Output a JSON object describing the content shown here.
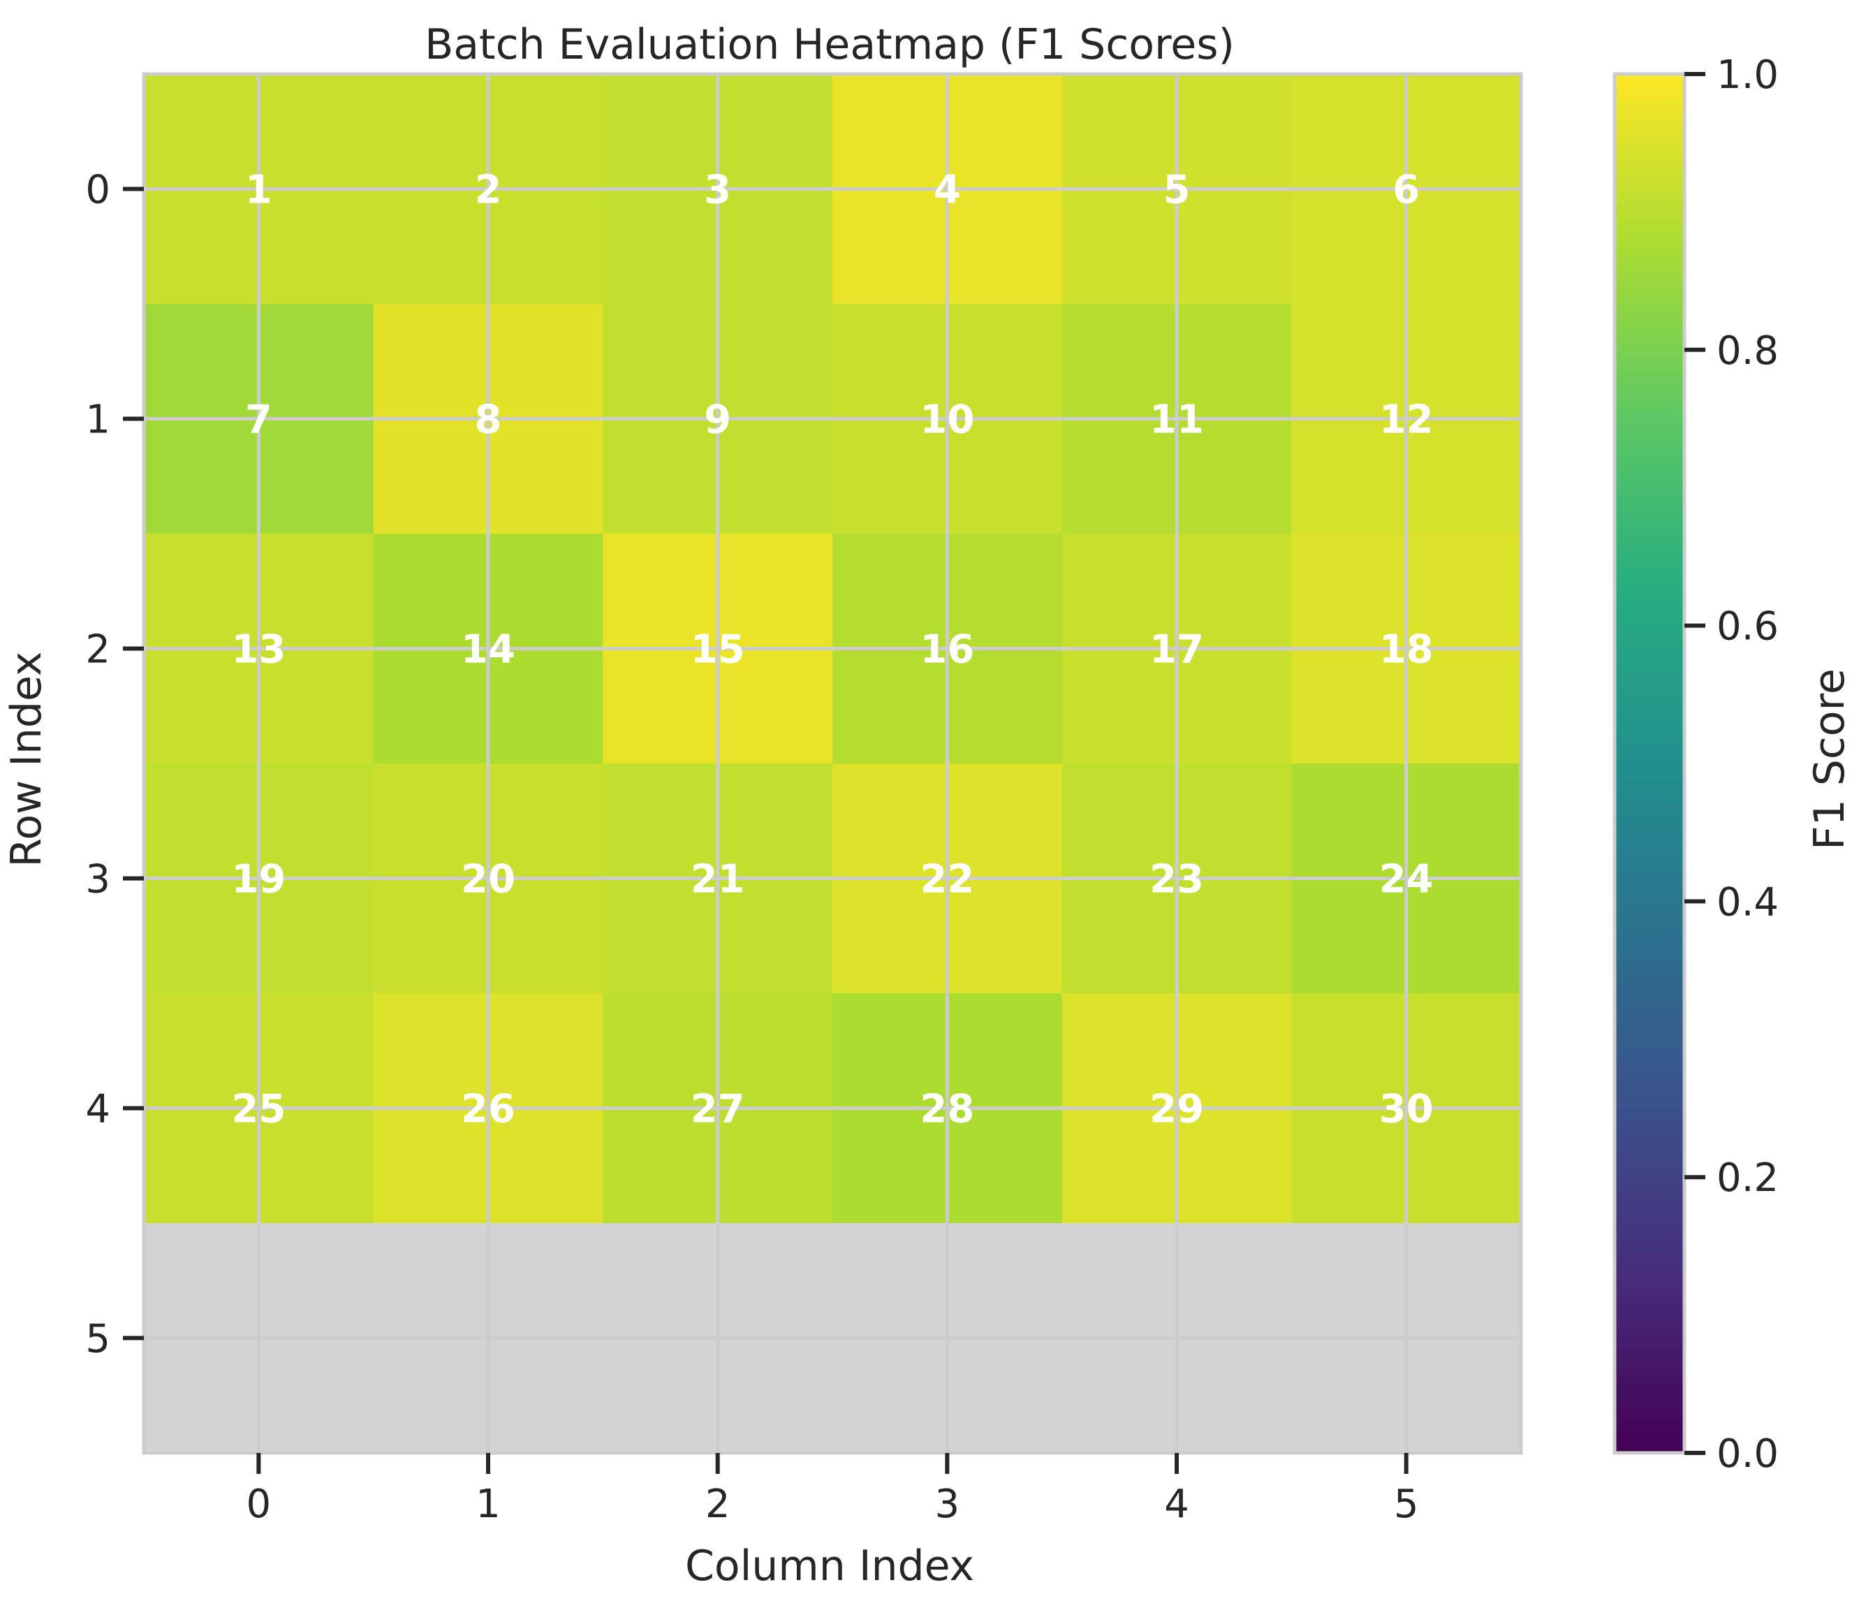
{
  "chart_data": {
    "type": "heatmap",
    "title": "Batch Evaluation Heatmap (F1 Scores)",
    "xlabel": "Column Index",
    "ylabel": "Row Index",
    "x_categories": [
      "0",
      "1",
      "2",
      "3",
      "4",
      "5"
    ],
    "y_categories": [
      "0",
      "1",
      "2",
      "3",
      "4",
      "5"
    ],
    "colormap": "viridis",
    "missing_color": "#d3d3d3",
    "grid": true,
    "values": [
      [
        0.92,
        0.92,
        0.91,
        0.97,
        0.93,
        0.94
      ],
      [
        0.86,
        0.96,
        0.91,
        0.92,
        0.89,
        0.94
      ],
      [
        0.92,
        0.88,
        0.97,
        0.89,
        0.92,
        0.95
      ],
      [
        0.91,
        0.92,
        0.91,
        0.95,
        0.91,
        0.88
      ],
      [
        0.92,
        0.95,
        0.9,
        0.88,
        0.95,
        0.92
      ],
      [
        null,
        null,
        null,
        null,
        null,
        null
      ]
    ],
    "cell_labels": [
      [
        "1",
        "2",
        "3",
        "4",
        "5",
        "6"
      ],
      [
        "7",
        "8",
        "9",
        "10",
        "11",
        "12"
      ],
      [
        "13",
        "14",
        "15",
        "16",
        "17",
        "18"
      ],
      [
        "19",
        "20",
        "21",
        "22",
        "23",
        "24"
      ],
      [
        "25",
        "26",
        "27",
        "28",
        "29",
        "30"
      ],
      [
        "",
        "",
        "",
        "",
        "",
        ""
      ]
    ],
    "colorbar": {
      "label": "F1 Score",
      "range": [
        0,
        1
      ],
      "ticks": [
        "0.0",
        "0.2",
        "0.4",
        "0.6",
        "0.8",
        "1.0"
      ],
      "tick_values": [
        0,
        0.2,
        0.4,
        0.6,
        0.8,
        1.0
      ]
    }
  }
}
